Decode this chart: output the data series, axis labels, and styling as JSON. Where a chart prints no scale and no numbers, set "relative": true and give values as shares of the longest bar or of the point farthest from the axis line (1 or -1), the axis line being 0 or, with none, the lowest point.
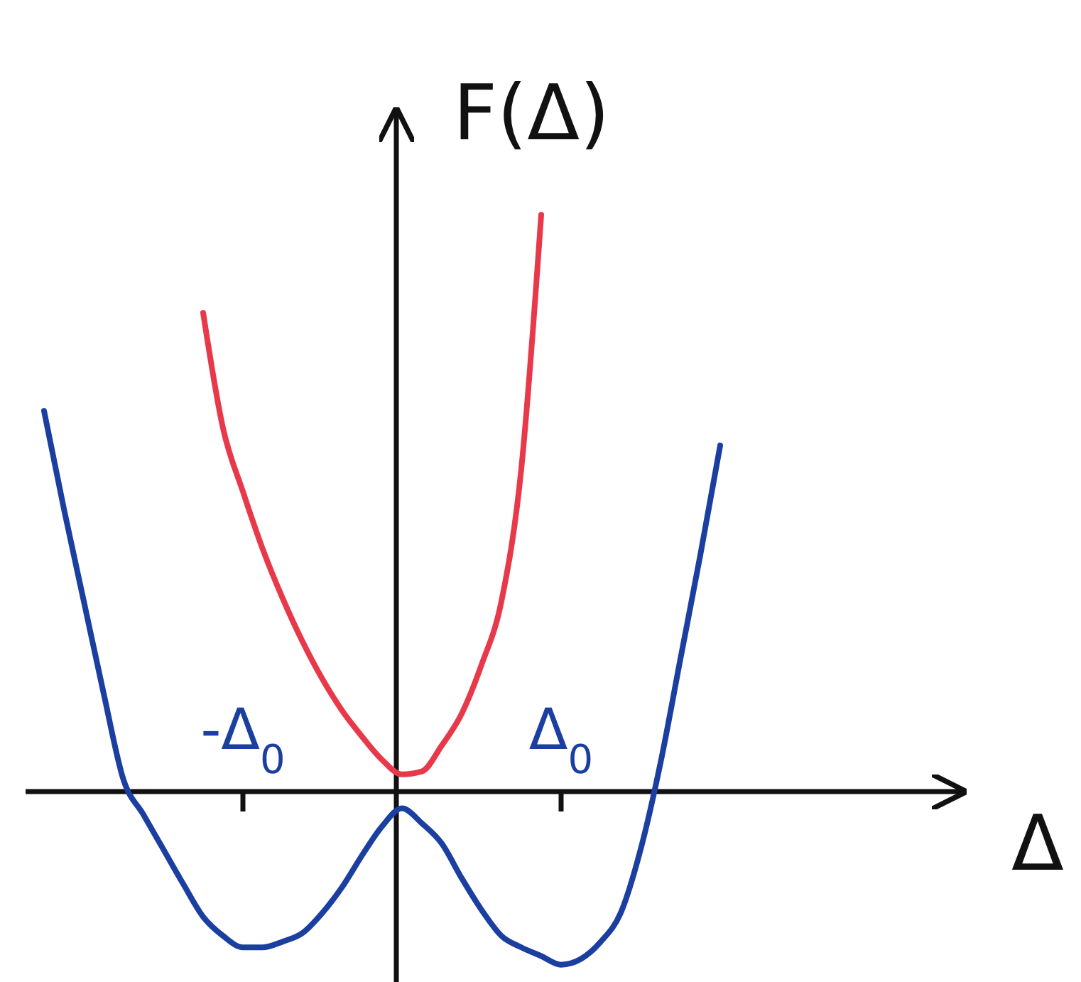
{
  "chart_data": {
    "type": "line",
    "xlabel": "Δ",
    "ylabel": "F(Δ)",
    "relative": true,
    "tick_labels": "x",
    "categories": [
      null,
      null,
      null,
      null,
      null,
      null,
      null,
      null,
      null,
      null,
      "-Δ$_{0}$",
      null,
      null,
      null,
      null,
      null,
      null,
      null,
      null,
      null,
      null,
      null,
      null,
      null,
      null,
      null,
      "Δ$_{0}$",
      null,
      null,
      null,
      null,
      null,
      null,
      null,
      null
    ],
    "series": [
      {
        "color": "#e8394a",
        "values": [
          null,
          null,
          null,
          null,
          null,
          null,
          null,
          null,
          0.83,
          0.63,
          0.52,
          0.42,
          0.335,
          0.26,
          0.195,
          0.14,
          0.095,
          0.055,
          0.03,
          0.035,
          0.08,
          0.135,
          0.22,
          0.33,
          0.56,
          1.0,
          null,
          null,
          null,
          null,
          null,
          null,
          null,
          null,
          null
        ]
      },
      {
        "color": "#1a3fa0",
        "values": [
          0.66,
          0.49,
          0.33,
          0.17,
          0.02,
          -0.04,
          -0.1,
          -0.16,
          -0.217,
          -0.25,
          -0.27,
          -0.27,
          -0.26,
          -0.245,
          -0.21,
          -0.165,
          -0.11,
          -0.06,
          -0.029,
          -0.055,
          -0.09,
          -0.15,
          -0.205,
          -0.25,
          -0.27,
          -0.285,
          -0.3,
          -0.29,
          -0.26,
          -0.21,
          -0.1,
          0.05,
          0.23,
          0.41,
          0.6
        ]
      }
    ]
  }
}
